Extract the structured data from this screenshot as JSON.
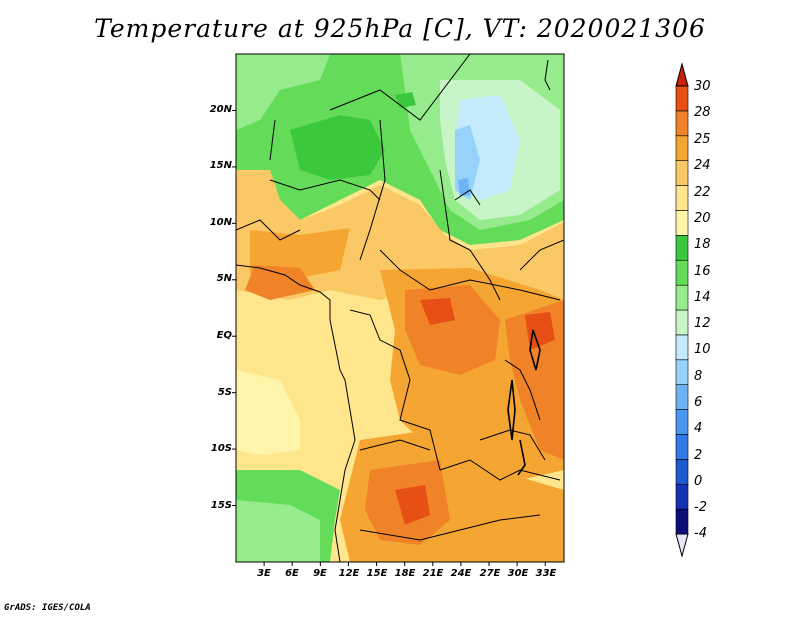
{
  "title": "Temperature at 925hPa [C], VT: 2020021306",
  "map": {
    "lat_ticks": [
      "20N",
      "15N",
      "10N",
      "5N",
      "EQ",
      "5S",
      "10S",
      "15S"
    ],
    "lon_ticks": [
      "3E",
      "6E",
      "9E",
      "12E",
      "15E",
      "18E",
      "21E",
      "24E",
      "27E",
      "30E",
      "33E"
    ],
    "lat_range": [
      -20,
      25
    ],
    "lon_range": [
      0,
      35
    ],
    "tick_degrees": {
      "lat": [
        20,
        15,
        10,
        5,
        0,
        -5,
        -10,
        -15
      ],
      "lon": [
        3,
        6,
        9,
        12,
        15,
        18,
        21,
        24,
        27,
        30,
        33
      ]
    }
  },
  "colorbar": {
    "levels": [
      "-4",
      "-2",
      "0",
      "2",
      "4",
      "6",
      "8",
      "10",
      "12",
      "14",
      "16",
      "18",
      "20",
      "22",
      "24",
      "25",
      "28",
      "30"
    ],
    "colors": [
      "#0d0d78",
      "#1432b4",
      "#1e5ad2",
      "#3278e6",
      "#4b96f0",
      "#6eb4f5",
      "#96d2fa",
      "#c3ebfc",
      "#c8f5c8",
      "#96eb8c",
      "#64dc5a",
      "#3cc83c",
      "#fff5aa",
      "#ffe68c",
      "#fac864",
      "#f5a532",
      "#f08228",
      "#e65014",
      "#d2280a"
    ],
    "under_color": "#e6e6fa",
    "over_color": "#c81e0a"
  },
  "credit": "GrADS: IGES/COLA"
}
